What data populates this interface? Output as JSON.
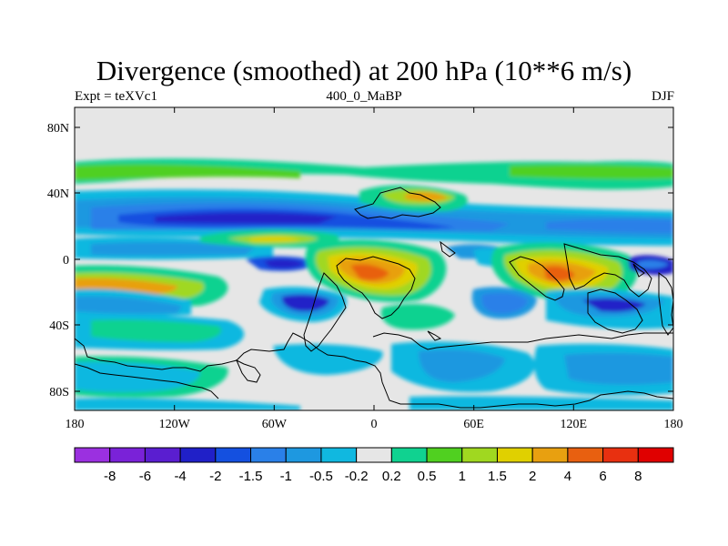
{
  "title": "Divergence (smoothed) at 200 hPa (10**6 m/s)",
  "subtitle_left": "Expt = teXVc1",
  "subtitle_center": "400_0_MaBP",
  "subtitle_right": "DJF",
  "map": {
    "projection": "cylindrical-equidistant",
    "lon_range": [
      -180,
      180
    ],
    "lat_range": [
      -90,
      90
    ],
    "x_ticks": [
      "180",
      "120W",
      "60W",
      "0",
      "60E",
      "120E",
      "180"
    ],
    "y_ticks": [
      "80N",
      "40N",
      "0",
      "40S",
      "80S"
    ]
  },
  "colorbar": {
    "labels": [
      "-8",
      "-6",
      "-4",
      "-2",
      "-1.5",
      "-1",
      "-0.5",
      "-0.2",
      "0.2",
      "0.5",
      "1",
      "1.5",
      "2",
      "4",
      "6",
      "8"
    ],
    "colors": [
      "#9b30e0",
      "#7a22d8",
      "#5a1ed0",
      "#2020c8",
      "#1450e0",
      "#2a80e8",
      "#1e98e0",
      "#10b8e0",
      "#e6e6e6",
      "#10d290",
      "#50d020",
      "#a0d820",
      "#e0d000",
      "#e8a010",
      "#e86010",
      "#e83010",
      "#e00000"
    ]
  }
}
